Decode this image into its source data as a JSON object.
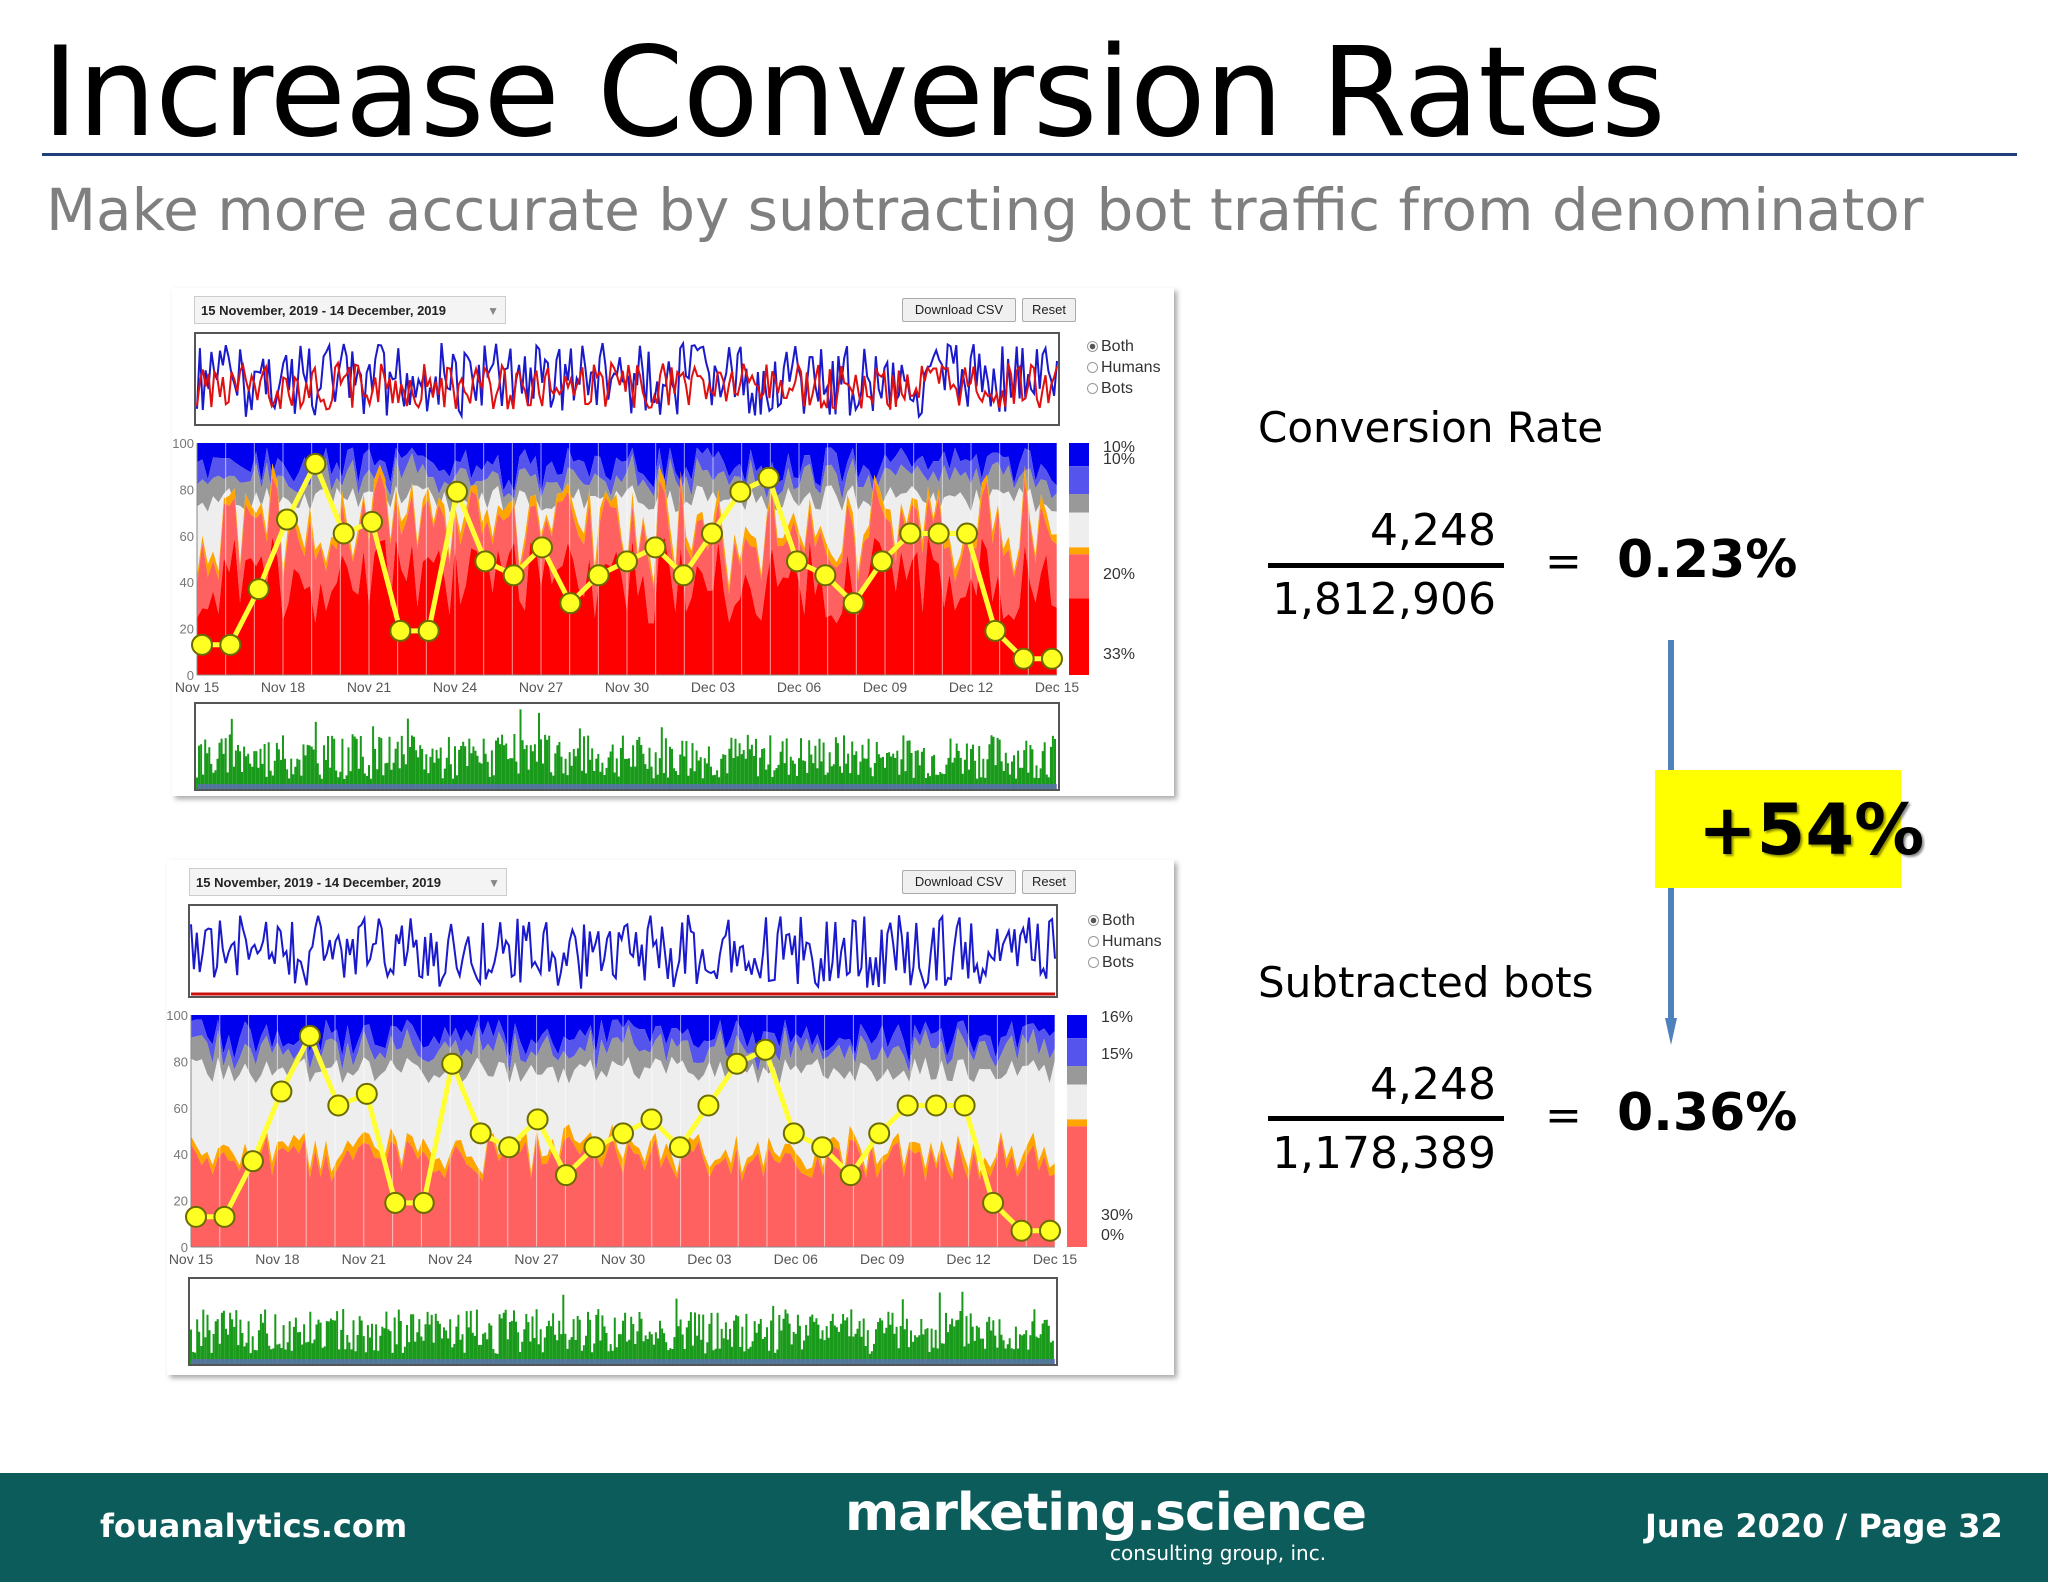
{
  "slide": {
    "title": "Increase Conversion Rates",
    "subtitle": "Make more accurate by subtracting bot traffic from denominator"
  },
  "dashboards": [
    {
      "date_range": "15 November, 2019 - 14 December, 2019",
      "download_label": "Download CSV",
      "reset_label": "Reset",
      "radio_options": [
        "Both",
        "Humans",
        "Bots"
      ],
      "selected_option": "Both",
      "y_ticks": [
        "100",
        "80",
        "60",
        "40",
        "20",
        "0"
      ],
      "x_ticks": [
        "Nov 15",
        "Nov 18",
        "Nov 21",
        "Nov 24",
        "Nov 27",
        "Nov 30",
        "Dec 03",
        "Dec 06",
        "Dec 09",
        "Dec 12",
        "Dec 15"
      ],
      "legend_percents": [
        "10%",
        "10%",
        "20%",
        "33%"
      ],
      "show_red_series": true
    },
    {
      "date_range": "15 November, 2019 - 14 December, 2019",
      "download_label": "Download CSV",
      "reset_label": "Reset",
      "radio_options": [
        "Both",
        "Humans",
        "Bots"
      ],
      "selected_option": "Both",
      "y_ticks": [
        "100",
        "80",
        "60",
        "40",
        "20",
        "0"
      ],
      "x_ticks": [
        "Nov 15",
        "Nov 18",
        "Nov 21",
        "Nov 24",
        "Nov 27",
        "Nov 30",
        "Dec 03",
        "Dec 06",
        "Dec 09",
        "Dec 12",
        "Dec 15"
      ],
      "legend_percents": [
        "16%",
        "15%",
        "30%",
        "0%"
      ],
      "show_red_series": false
    }
  ],
  "chart_data": {
    "type": "line",
    "ylim": [
      0,
      100
    ],
    "yellow_line_values": [
      13,
      13,
      37,
      67,
      91,
      61,
      66,
      19,
      19,
      79,
      49,
      43,
      55,
      31,
      43,
      49,
      55,
      43,
      61,
      79,
      85,
      49,
      43,
      31,
      49,
      61,
      61,
      61,
      19,
      7,
      7
    ]
  },
  "calc": {
    "conversion_label": "Conversion Rate",
    "numerator_1": "4,248",
    "denominator_1": "1,812,906",
    "equals": "=",
    "result_1": "0.23%",
    "subtracted_label": "Subtracted bots",
    "numerator_2": "4,248",
    "denominator_2": "1,178,389",
    "result_2": "0.36%",
    "change": "+54%"
  },
  "colors": {
    "arrow": "#4f81bd",
    "callout": "#ffff00",
    "footer": "#0d5c5c",
    "rule": "#1f3f7a"
  },
  "footer": {
    "left": "fouanalytics.com",
    "logo_main": "marketing.science",
    "logo_sub": "consulting group, inc.",
    "right": "June 2020 / Page 32"
  }
}
